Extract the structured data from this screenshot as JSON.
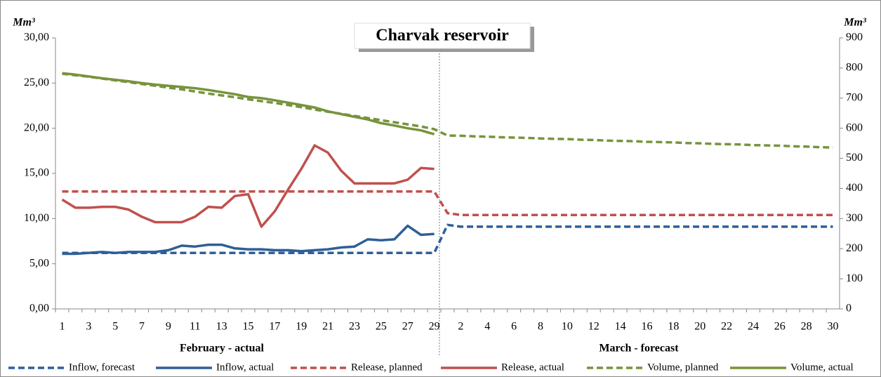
{
  "chart_data": {
    "type": "line",
    "title": "Charvak reservoir",
    "ylabel": "Mm³",
    "y2label": "Mm³",
    "xlabel_left": "February - actual",
    "xlabel_right": "March - forecast",
    "categories": [
      1,
      null,
      3,
      null,
      5,
      null,
      7,
      null,
      9,
      null,
      11,
      null,
      13,
      null,
      15,
      null,
      17,
      null,
      19,
      null,
      21,
      null,
      23,
      null,
      25,
      null,
      27,
      null,
      29,
      null,
      2,
      null,
      4,
      null,
      6,
      null,
      8,
      null,
      10,
      null,
      12,
      null,
      14,
      null,
      16,
      null,
      18,
      null,
      20,
      null,
      22,
      null,
      24,
      null,
      26,
      null,
      28,
      null,
      30
    ],
    "ylim": [
      0,
      30
    ],
    "yticks": [
      {
        "value": 0,
        "label": "0,00"
      },
      {
        "value": 5,
        "label": "5,00"
      },
      {
        "value": 10,
        "label": "10,00"
      },
      {
        "value": 15,
        "label": "15,00"
      },
      {
        "value": 20,
        "label": "20,00"
      },
      {
        "value": 25,
        "label": "25,00"
      },
      {
        "value": 30,
        "label": "30,00"
      }
    ],
    "y2lim": [
      0,
      900
    ],
    "y2ticks": [
      0,
      100,
      200,
      300,
      400,
      500,
      600,
      700,
      800,
      900
    ],
    "grid": false,
    "legend": "bottom",
    "series": [
      {
        "name": "Inflow, forecast",
        "color": "#2e5f98",
        "dash": true,
        "values": [
          6.2,
          6.2,
          6.2,
          6.2,
          6.2,
          6.2,
          6.2,
          6.2,
          6.2,
          6.2,
          6.2,
          6.2,
          6.2,
          6.2,
          6.2,
          6.2,
          6.2,
          6.2,
          6.2,
          6.2,
          6.2,
          6.2,
          6.2,
          6.2,
          6.2,
          6.2,
          6.2,
          6.2,
          6.2,
          9.3,
          9.1,
          9.1,
          9.1,
          9.1,
          9.1,
          9.1,
          9.1,
          9.1,
          9.1,
          9.1,
          9.1,
          9.1,
          9.1,
          9.1,
          9.1,
          9.1,
          9.1,
          9.1,
          9.1,
          9.1,
          9.1,
          9.1,
          9.1,
          9.1,
          9.1,
          9.1,
          9.1,
          9.1,
          9.1
        ]
      },
      {
        "name": "Inflow, actual",
        "color": "#2e5f98",
        "dash": false,
        "values": [
          6.1,
          6.1,
          6.2,
          6.3,
          6.2,
          6.3,
          6.3,
          6.3,
          6.5,
          7.0,
          6.9,
          7.1,
          7.1,
          6.7,
          6.6,
          6.6,
          6.5,
          6.5,
          6.4,
          6.5,
          6.6,
          6.8,
          6.9,
          7.7,
          7.6,
          7.7,
          9.2,
          8.2,
          8.3,
          null,
          null,
          null,
          null,
          null,
          null,
          null,
          null,
          null,
          null,
          null,
          null,
          null,
          null,
          null,
          null,
          null,
          null,
          null,
          null,
          null,
          null,
          null,
          null,
          null,
          null,
          null,
          null,
          null,
          null
        ]
      },
      {
        "name": "Release, planned",
        "color": "#c0504d",
        "dash": true,
        "values": [
          13.0,
          13.0,
          13.0,
          13.0,
          13.0,
          13.0,
          13.0,
          13.0,
          13.0,
          13.0,
          13.0,
          13.0,
          13.0,
          13.0,
          13.0,
          13.0,
          13.0,
          13.0,
          13.0,
          13.0,
          13.0,
          13.0,
          13.0,
          13.0,
          13.0,
          13.0,
          13.0,
          13.0,
          13.0,
          10.6,
          10.4,
          10.4,
          10.4,
          10.4,
          10.4,
          10.4,
          10.4,
          10.4,
          10.4,
          10.4,
          10.4,
          10.4,
          10.4,
          10.4,
          10.4,
          10.4,
          10.4,
          10.4,
          10.4,
          10.4,
          10.4,
          10.4,
          10.4,
          10.4,
          10.4,
          10.4,
          10.4,
          10.4,
          10.4
        ]
      },
      {
        "name": "Release, actual",
        "color": "#c0504d",
        "dash": false,
        "values": [
          12.1,
          11.2,
          11.2,
          11.3,
          11.3,
          11.0,
          10.2,
          9.6,
          9.6,
          9.6,
          10.2,
          11.3,
          11.2,
          12.5,
          12.7,
          9.1,
          10.8,
          13.2,
          15.5,
          18.1,
          17.3,
          15.3,
          13.9,
          13.9,
          13.9,
          13.9,
          14.3,
          15.6,
          15.5,
          null,
          null,
          null,
          null,
          null,
          null,
          null,
          null,
          null,
          null,
          null,
          null,
          null,
          null,
          null,
          null,
          null,
          null,
          null,
          null,
          null,
          null,
          null,
          null,
          null,
          null,
          null,
          null,
          null,
          null
        ]
      },
      {
        "name": "Volume, planned",
        "color": "#77933c",
        "dash": true,
        "axis": "y2",
        "values": [
          781,
          776,
          771,
          765,
          759,
          753,
          747,
          741,
          735,
          729,
          722,
          715,
          709,
          703,
          696,
          690,
          684,
          677,
          670,
          662,
          655,
          648,
          641,
          634,
          627,
          620,
          613,
          606,
          597,
          576,
          575,
          573,
          572,
          570,
          569,
          568,
          566,
          565,
          564,
          562,
          561,
          559,
          558,
          557,
          555,
          554,
          553,
          551,
          550,
          548,
          547,
          546,
          544,
          543,
          542,
          540,
          539,
          537,
          536
        ]
      },
      {
        "name": "Volume, actual",
        "color": "#77933c",
        "dash": false,
        "axis": "y2",
        "values": [
          783,
          778,
          772,
          766,
          761,
          756,
          750,
          745,
          741,
          737,
          733,
          727,
          720,
          713,
          704,
          700,
          693,
          685,
          677,
          669,
          656,
          647,
          638,
          629,
          617,
          609,
          600,
          593,
          580,
          null,
          null,
          null,
          null,
          null,
          null,
          null,
          null,
          null,
          null,
          null,
          null,
          null,
          null,
          null,
          null,
          null,
          null,
          null,
          null,
          null,
          null,
          null,
          null,
          null,
          null,
          null,
          null,
          null,
          null
        ]
      }
    ]
  }
}
